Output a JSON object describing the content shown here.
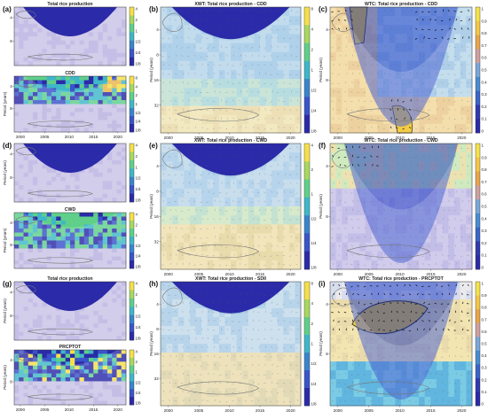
{
  "chart_data": [
    {
      "id": "a_top",
      "type": "heatmap",
      "title": "Total rice production",
      "ylabel": "",
      "xlabel": "",
      "x_ticks": [],
      "y_ticks": [
        "4",
        "8"
      ],
      "colorbar_ticks": [
        "4",
        "2",
        "1",
        "1/2",
        "1/4",
        "1/8"
      ],
      "panel_letter": "(a)"
    },
    {
      "id": "a_bottom",
      "type": "heatmap",
      "title": "CDD",
      "ylabel": "Period (years)",
      "xlabel": "",
      "x_ticks": [
        "2000",
        "2005",
        "2010",
        "2015",
        "2020"
      ],
      "y_ticks": [
        "4",
        "8"
      ],
      "colorbar_ticks": [
        "8",
        "4",
        "2",
        "1",
        "1/2",
        "1/4",
        "1/8"
      ],
      "panel_letter": ""
    },
    {
      "id": "b",
      "type": "heatmap",
      "title": "XWT: Total rice production - CDD",
      "ylabel": "Period (years)",
      "xlabel": "",
      "x_ticks": [
        "2000",
        "2005",
        "2010",
        "2015",
        "2020"
      ],
      "y_ticks": [
        "4",
        "8",
        "16",
        "32"
      ],
      "colorbar_ticks": [
        "8",
        "4",
        "2",
        "1",
        "1/2",
        "1/4",
        "1/8"
      ],
      "panel_letter": "(b)"
    },
    {
      "id": "c",
      "type": "heatmap",
      "title": "WTC: Total rice production - CDD",
      "ylabel": "Period (years)",
      "xlabel": "",
      "x_ticks": [
        "2000",
        "2005",
        "2010",
        "2015",
        "2020"
      ],
      "y_ticks": [
        "4",
        "8"
      ],
      "colorbar_ticks": [
        "1",
        "0.9",
        "0.8",
        "0.7",
        "0.6",
        "0.5",
        "0.4",
        "0.3",
        "0.2",
        "0.1",
        "0"
      ],
      "panel_letter": "(c)"
    },
    {
      "id": "d_top",
      "type": "heatmap",
      "title": "",
      "ylabel": "Period (years)",
      "xlabel": "",
      "x_ticks": [],
      "y_ticks": [
        "4",
        "8"
      ],
      "colorbar_ticks": [
        "4",
        "2",
        "1",
        "1/2",
        "1/4",
        "1/8"
      ],
      "panel_letter": "(d)"
    },
    {
      "id": "d_bottom",
      "type": "heatmap",
      "title": "CWD",
      "ylabel": "Period (years)",
      "xlabel": "",
      "x_ticks": [],
      "y_ticks": [
        "4",
        "8"
      ],
      "colorbar_ticks": [
        "4",
        "2",
        "1",
        "1/2",
        "1/4",
        "1/8"
      ],
      "panel_letter": ""
    },
    {
      "id": "e",
      "type": "heatmap",
      "title": "XWT: Total rice production - CWD",
      "ylabel": "Period (years)",
      "xlabel": "",
      "x_ticks": [
        "2000",
        "2005",
        "2010",
        "2015",
        "2020"
      ],
      "y_ticks": [
        "4",
        "8",
        "16",
        "32"
      ],
      "colorbar_ticks": [
        "4",
        "2",
        "1",
        "1/2",
        "1/4",
        "1/8"
      ],
      "panel_letter": "(e)"
    },
    {
      "id": "f",
      "type": "heatmap",
      "title": "WTC: Total rice production - CWD",
      "ylabel": "Period (years)",
      "xlabel": "",
      "x_ticks": [
        "2000",
        "2005",
        "2010",
        "2015",
        "2020"
      ],
      "y_ticks": [
        "4",
        "8"
      ],
      "colorbar_ticks": [
        "1",
        "0.9",
        "0.8",
        "0.7",
        "0.6",
        "0.5",
        "0.4",
        "0.3",
        "0.2",
        "0.1",
        "0"
      ],
      "panel_letter": "(f)"
    },
    {
      "id": "g_top",
      "type": "heatmap",
      "title": "Total rice production",
      "ylabel": "Period (years)",
      "xlabel": "",
      "x_ticks": [],
      "y_ticks": [
        "4",
        "8"
      ],
      "colorbar_ticks": [
        "4",
        "2",
        "1",
        "1/2",
        "1/4",
        "1/8"
      ],
      "panel_letter": "(g)"
    },
    {
      "id": "g_bottom",
      "type": "heatmap",
      "title": "PRCPTOT",
      "ylabel": "Period (years)",
      "xlabel": "",
      "x_ticks": [
        "2000",
        "2005",
        "2010",
        "2015",
        "2020"
      ],
      "y_ticks": [
        "4",
        "8"
      ],
      "colorbar_ticks": [
        "4",
        "2",
        "1",
        "1/2",
        "1/4",
        "1/8"
      ],
      "panel_letter": ""
    },
    {
      "id": "h",
      "type": "heatmap",
      "title": "XWT: Total rice production - SDII",
      "ylabel": "Period (years)",
      "xlabel": "",
      "x_ticks": [
        "2000",
        "2005",
        "2010",
        "2015",
        "2020"
      ],
      "y_ticks": [
        "4",
        "8",
        "16",
        "32"
      ],
      "colorbar_ticks": [
        "8",
        "4",
        "2",
        "1",
        "1/2",
        "1/4",
        "1/8"
      ],
      "panel_letter": "(h)"
    },
    {
      "id": "i",
      "type": "heatmap",
      "title": "WTC: Total rice production - PRCPTOT",
      "ylabel": "Period (years)",
      "xlabel": "",
      "x_ticks": [
        "2000",
        "2005",
        "2010",
        "2015",
        "2020"
      ],
      "y_ticks": [
        "4",
        "8"
      ],
      "colorbar_ticks": [
        "1",
        "0.9",
        "0.8",
        "0.7",
        "0.6",
        "0.5",
        "0.4",
        "0.3",
        "0.2",
        "0.1",
        "0"
      ],
      "panel_letter": "(i)"
    }
  ],
  "colors": {
    "deep": "#2b2aa8",
    "light": "#c9c3e6",
    "yellow": "#f5e04a",
    "orange": "#e8b64a",
    "cyan": "#3fb7c8",
    "green": "#5fcf8a",
    "blue": "#3a54c9",
    "cone": "#c0b9e2",
    "contour": "#777777"
  }
}
